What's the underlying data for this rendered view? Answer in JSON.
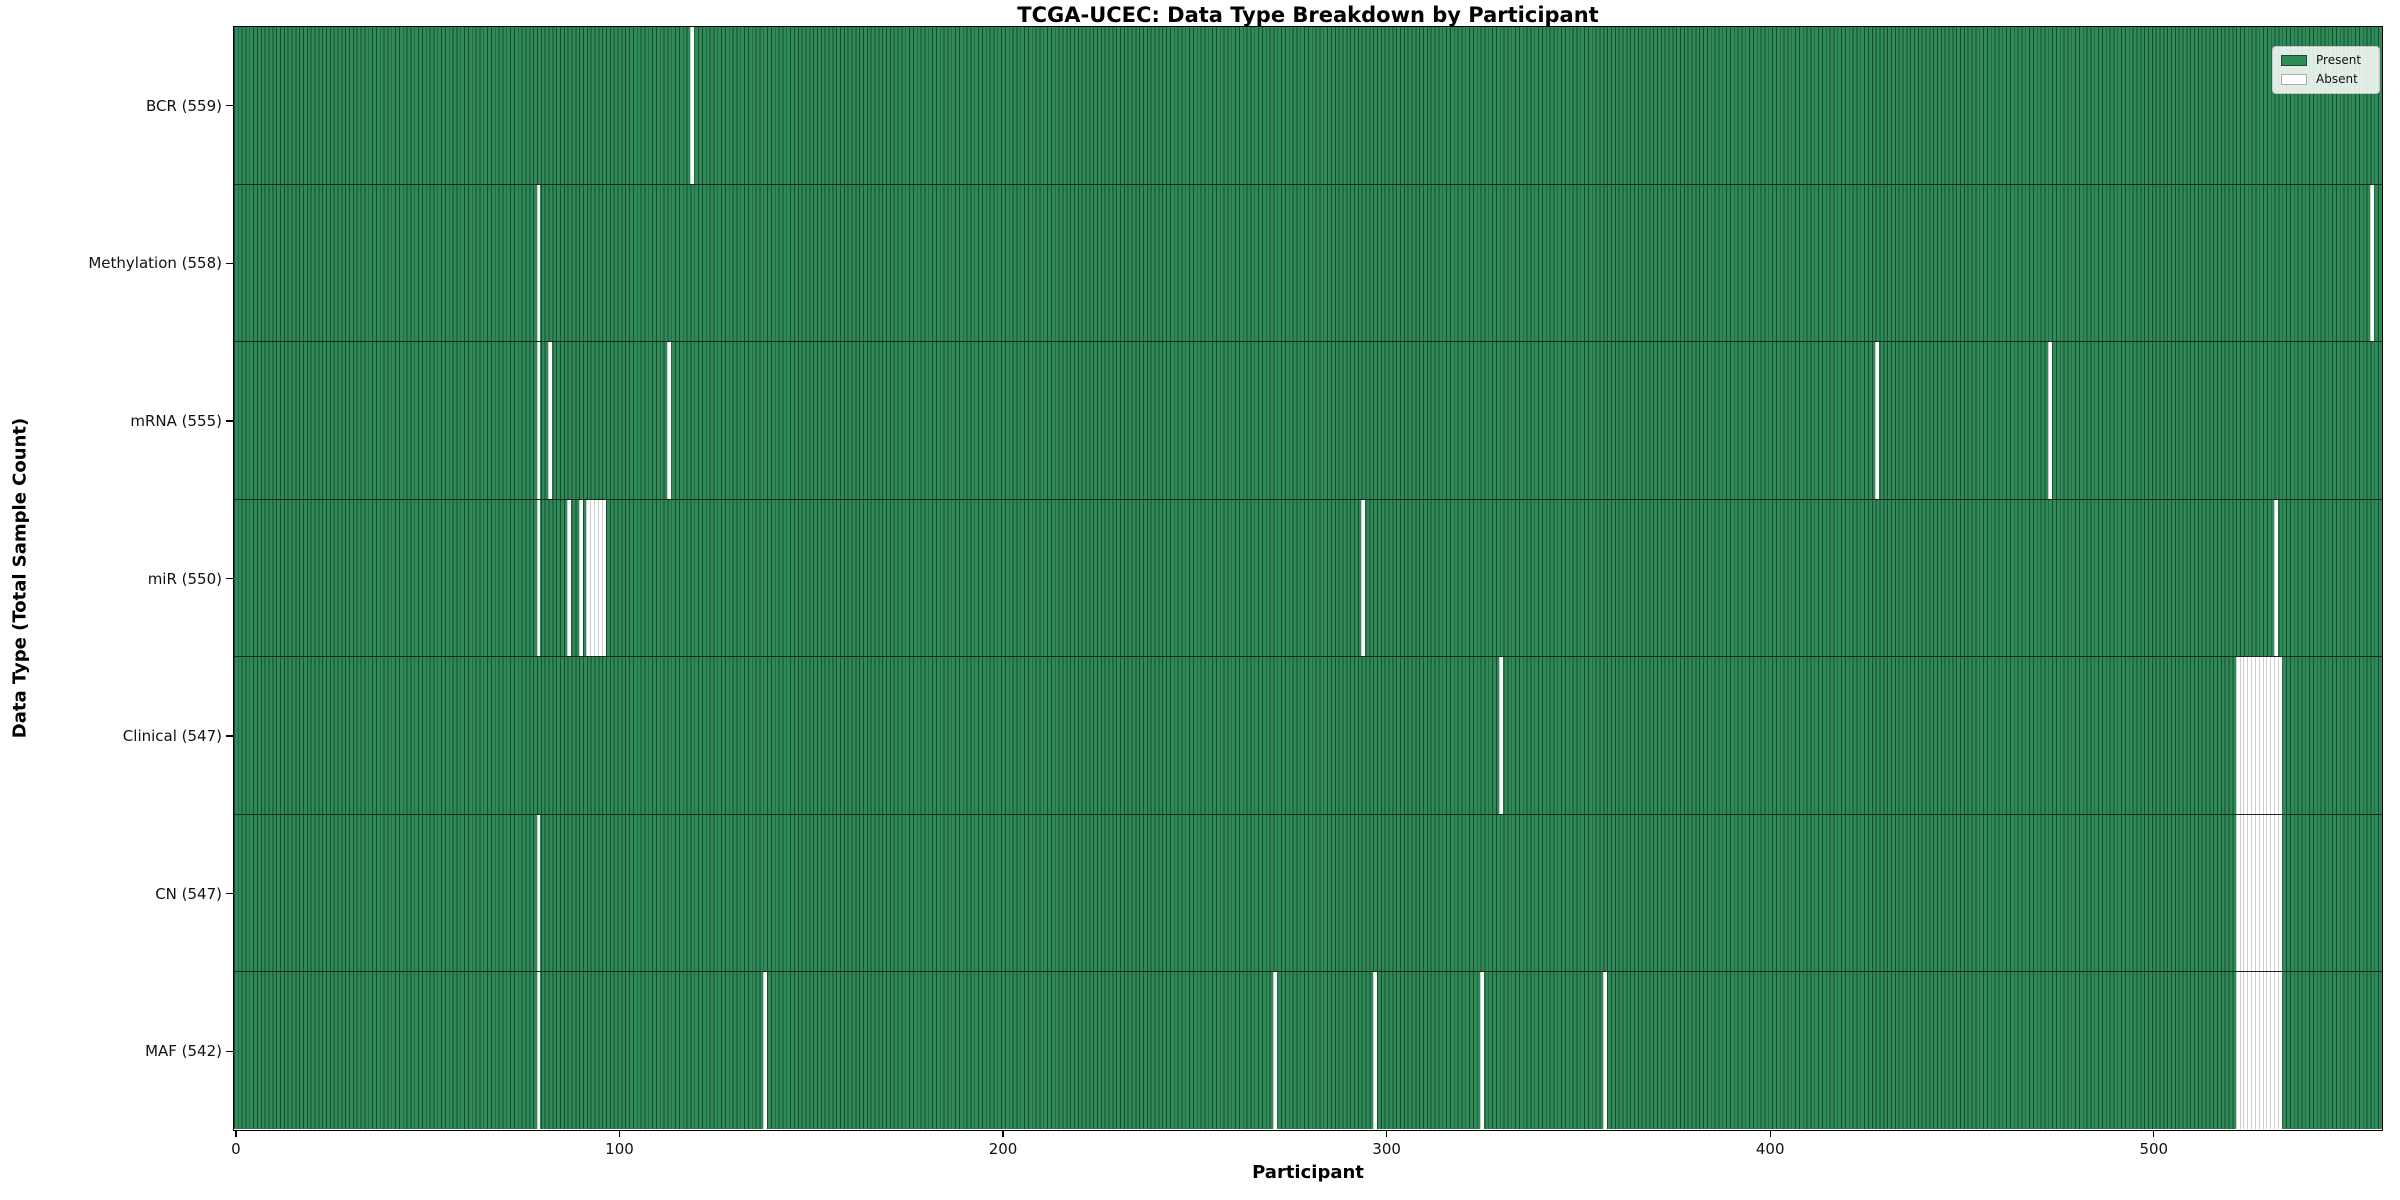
{
  "chart_data": {
    "type": "heatmap",
    "title": "TCGA-UCEC: Data Type Breakdown by Participant",
    "xlabel": "Participant",
    "ylabel": "Data Type (Total Sample Count)",
    "x_ticks": [
      0,
      100,
      200,
      300,
      400,
      500
    ],
    "xlim": [
      -0.5,
      559.5
    ],
    "n_participants": 560,
    "grid": false,
    "legend_position": "upper right",
    "colors": {
      "present": "#2e8b57",
      "present_edge": "#1a4a30",
      "absent": "#ffffff",
      "absent_edge": "#cfcfcf",
      "row_separator": "#14281c",
      "axis": "#000000"
    },
    "legend": {
      "entries": [
        {
          "key": "present",
          "label": "Present",
          "color": "#2e8b57"
        },
        {
          "key": "absent",
          "label": "Absent",
          "color": "#ffffff"
        }
      ]
    },
    "rows": [
      {
        "label": "BCR (559)",
        "data_type": "BCR",
        "present_count": 559,
        "absent_count": 1,
        "absent_participants": [
          119
        ]
      },
      {
        "label": "Methylation (558)",
        "data_type": "Methylation",
        "present_count": 558,
        "absent_count": 2,
        "absent_participants": [
          79,
          557
        ]
      },
      {
        "label": "mRNA (555)",
        "data_type": "mRNA",
        "present_count": 555,
        "absent_count": 5,
        "absent_participants": [
          79,
          82,
          113,
          428,
          473
        ]
      },
      {
        "label": "miR (550)",
        "data_type": "miR",
        "present_count": 550,
        "absent_count": 10,
        "absent_participants": [
          79,
          87,
          90,
          92,
          93,
          94,
          95,
          96,
          294,
          532
        ]
      },
      {
        "label": "Clinical (547)",
        "data_type": "Clinical",
        "present_count": 547,
        "absent_count": 13,
        "absent_participants": [
          330,
          522,
          523,
          524,
          525,
          526,
          527,
          528,
          529,
          530,
          531,
          532,
          533
        ]
      },
      {
        "label": "CN (547)",
        "data_type": "CN",
        "present_count": 547,
        "absent_count": 13,
        "absent_participants": [
          79,
          522,
          523,
          524,
          525,
          526,
          527,
          528,
          529,
          530,
          531,
          532,
          533
        ]
      },
      {
        "label": "MAF (542)",
        "data_type": "MAF",
        "present_count": 542,
        "absent_count": 18,
        "absent_participants": [
          79,
          138,
          271,
          297,
          325,
          357,
          522,
          523,
          524,
          525,
          526,
          527,
          528,
          529,
          530,
          531,
          532,
          533
        ]
      }
    ]
  }
}
